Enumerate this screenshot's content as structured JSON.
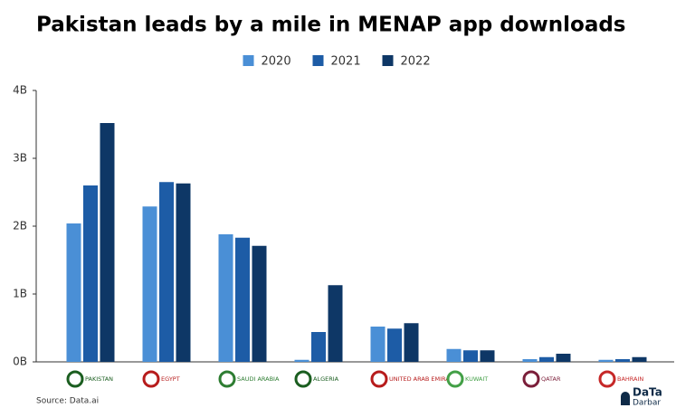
{
  "chart_data": {
    "type": "bar",
    "title": "Pakistan leads by a mile in MENAP app downloads",
    "categories": [
      "PAKISTAN",
      "EGYPT",
      "SAUDI ARABIA",
      "ALGERIA",
      "UNITED ARAB EMIRATES",
      "KUWAIT",
      "QATAR",
      "BAHRAIN"
    ],
    "category_colors": [
      "#1b5e20",
      "#b71c1c",
      "#2e7d32",
      "#1b5e20",
      "#b71c1c",
      "#43a047",
      "#7b1f3a",
      "#c62828"
    ],
    "series": [
      {
        "name": "2020",
        "color": "#4a8fd6",
        "values": [
          2.04,
          2.29,
          1.88,
          0.03,
          0.52,
          0.19,
          0.04,
          0.03
        ]
      },
      {
        "name": "2021",
        "color": "#1d5ca6",
        "values": [
          2.6,
          2.65,
          1.83,
          0.44,
          0.49,
          0.17,
          0.07,
          0.04
        ]
      },
      {
        "name": "2022",
        "color": "#0e3766",
        "values": [
          3.52,
          2.63,
          1.71,
          1.13,
          0.57,
          0.17,
          0.12,
          0.07
        ]
      }
    ],
    "ylim": [
      0,
      4
    ],
    "yticks": [
      {
        "value": 0,
        "label": "0B"
      },
      {
        "value": 1,
        "label": "1B"
      },
      {
        "value": 2,
        "label": "2B"
      },
      {
        "value": 3,
        "label": "3B"
      },
      {
        "value": 4,
        "label": "4B"
      }
    ],
    "grid": false,
    "source": "Source: Data.ai",
    "logo": [
      "DaTa",
      "Darbar"
    ]
  }
}
